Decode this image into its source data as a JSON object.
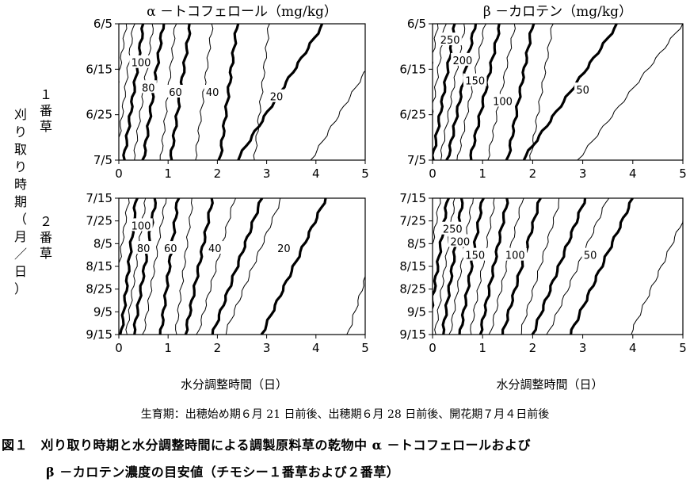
{
  "ylabel": "刈り取り時期（月／日）",
  "first_cut_label": "１番草",
  "second_cut_label": "２番草",
  "note": "生育期：出穂始め期６月 21 日前後、出穂期６月 28 日前後、開花期７月４日前後",
  "caption_line1": "図１　刈り取り時期と水分調整時間による調製原料草の乾物中 α －トコフェロールおよび",
  "caption_line2": "β －カロテン濃度の目安値（チモシー１番草および２番草）",
  "chart_data": [
    {
      "type": "contour",
      "panel": "top-left",
      "title": "α －トコフェロール（mg/kg）",
      "xlabel": "",
      "xlim": [
        0,
        5
      ],
      "x_ticks": [
        "0",
        "1",
        "2",
        "3",
        "4",
        "5"
      ],
      "y_ticks": [
        "6/5",
        "6/15",
        "6/25",
        "7/5"
      ],
      "contour_labels": [
        {
          "text": "100",
          "x": 0.45,
          "y": 8.5
        },
        {
          "text": "80",
          "x": 0.6,
          "y": 14
        },
        {
          "text": "60",
          "x": 1.15,
          "y": 15
        },
        {
          "text": "40",
          "x": 1.9,
          "y": 15
        },
        {
          "text": "20",
          "x": 3.2,
          "y": 16
        }
      ],
      "contours": [
        {
          "level": "",
          "bold": false,
          "x_top": 0.15,
          "x_bottom": -0.25
        },
        {
          "level": "",
          "bold": false,
          "x_top": 0.3,
          "x_bottom": -0.05
        },
        {
          "level": "",
          "bold": true,
          "x_top": 0.5,
          "x_bottom": 0.1
        },
        {
          "level": "",
          "bold": false,
          "x_top": 0.7,
          "x_bottom": 0.3
        },
        {
          "level": "",
          "bold": true,
          "x_top": 0.9,
          "x_bottom": 0.5
        },
        {
          "level": "",
          "bold": false,
          "x_top": 1.15,
          "x_bottom": 0.85
        },
        {
          "level": "",
          "bold": true,
          "x_top": 1.45,
          "x_bottom": 1.05
        },
        {
          "level": "",
          "bold": false,
          "x_top": 1.9,
          "x_bottom": 1.55
        },
        {
          "level": "",
          "bold": true,
          "x_top": 2.4,
          "x_bottom": 2.05
        },
        {
          "level": "",
          "bold": false,
          "x_top": 3.05,
          "x_bottom": 2.75
        },
        {
          "level": "",
          "bold": true,
          "x_top": 4.15,
          "x_bottom": 2.4
        },
        {
          "level": "",
          "bold": false,
          "x_top": 5.6,
          "x_bottom": 3.9
        }
      ]
    },
    {
      "type": "contour",
      "panel": "top-right",
      "title": "β －カロテン（mg/kg）",
      "xlabel": "",
      "xlim": [
        0,
        5
      ],
      "x_ticks": [
        "0",
        "1",
        "2",
        "3",
        "4",
        "5"
      ],
      "y_ticks": [
        "6/5",
        "6/15",
        "6/25",
        "7/5"
      ],
      "contour_labels": [
        {
          "text": "250",
          "x": 0.35,
          "y": 3.5
        },
        {
          "text": "200",
          "x": 0.6,
          "y": 8
        },
        {
          "text": "150",
          "x": 0.85,
          "y": 12.5
        },
        {
          "text": "100",
          "x": 1.4,
          "y": 17
        },
        {
          "text": "50",
          "x": 3.0,
          "y": 14.5
        }
      ],
      "contours": [
        {
          "level": "",
          "bold": false,
          "x_top": 0.1,
          "x_bottom": -0.3
        },
        {
          "level": "",
          "bold": false,
          "x_top": 0.25,
          "x_bottom": -0.15
        },
        {
          "level": "",
          "bold": true,
          "x_top": 0.45,
          "x_bottom": 0.0
        },
        {
          "level": "",
          "bold": false,
          "x_top": 0.65,
          "x_bottom": 0.15
        },
        {
          "level": "",
          "bold": true,
          "x_top": 0.85,
          "x_bottom": 0.3
        },
        {
          "level": "",
          "bold": false,
          "x_top": 1.05,
          "x_bottom": 0.5
        },
        {
          "level": "",
          "bold": true,
          "x_top": 1.35,
          "x_bottom": 0.75
        },
        {
          "level": "",
          "bold": false,
          "x_top": 1.65,
          "x_bottom": 1.1
        },
        {
          "level": "",
          "bold": true,
          "x_top": 2.0,
          "x_bottom": 1.5
        },
        {
          "level": "",
          "bold": false,
          "x_top": 2.4,
          "x_bottom": 1.95
        },
        {
          "level": "",
          "bold": true,
          "x_top": 3.7,
          "x_bottom": 1.8
        },
        {
          "level": "",
          "bold": false,
          "x_top": 5.0,
          "x_bottom": 2.9
        }
      ]
    },
    {
      "type": "contour",
      "panel": "bottom-left",
      "title": "",
      "xlabel": "水分調整時間（日）",
      "xlim": [
        0,
        5
      ],
      "x_ticks": [
        "0",
        "1",
        "2",
        "3",
        "4",
        "5"
      ],
      "y_ticks": [
        "7/15",
        "7/25",
        "8/5",
        "8/15",
        "8/25",
        "9/5",
        "9/15"
      ],
      "contour_labels": [
        {
          "text": "100",
          "x": 0.45,
          "y": 12
        },
        {
          "text": "80",
          "x": 0.5,
          "y": 22
        },
        {
          "text": "60",
          "x": 1.05,
          "y": 22
        },
        {
          "text": "40",
          "x": 1.95,
          "y": 22
        },
        {
          "text": "20",
          "x": 3.35,
          "y": 22
        }
      ],
      "contours": [
        {
          "level": "",
          "bold": false,
          "x_top": 0.2,
          "x_bottom": -0.2
        },
        {
          "level": "",
          "bold": true,
          "x_top": 0.35,
          "x_bottom": 0.05
        },
        {
          "level": "",
          "bold": false,
          "x_top": 0.55,
          "x_bottom": 0.15
        },
        {
          "level": "",
          "bold": true,
          "x_top": 0.75,
          "x_bottom": 0.3
        },
        {
          "level": "",
          "bold": false,
          "x_top": 0.95,
          "x_bottom": 0.5
        },
        {
          "level": "",
          "bold": true,
          "x_top": 1.2,
          "x_bottom": 0.85
        },
        {
          "level": "",
          "bold": false,
          "x_top": 1.5,
          "x_bottom": 1.15
        },
        {
          "level": "",
          "bold": true,
          "x_top": 1.9,
          "x_bottom": 1.35
        },
        {
          "level": "",
          "bold": false,
          "x_top": 2.35,
          "x_bottom": 1.6
        },
        {
          "level": "",
          "bold": true,
          "x_top": 2.9,
          "x_bottom": 1.9
        },
        {
          "level": "",
          "bold": false,
          "x_top": 3.3,
          "x_bottom": 2.15
        },
        {
          "level": "",
          "bold": true,
          "x_top": 4.2,
          "x_bottom": 2.9
        },
        {
          "level": "",
          "bold": false,
          "x_top": 5.5,
          "x_bottom": 4.65
        }
      ]
    },
    {
      "type": "contour",
      "panel": "bottom-right",
      "title": "",
      "xlabel": "水分調整時間（日）",
      "xlim": [
        0,
        5
      ],
      "x_ticks": [
        "0",
        "1",
        "2",
        "3",
        "4",
        "5"
      ],
      "y_ticks": [
        "7/15",
        "7/25",
        "8/5",
        "8/15",
        "8/25",
        "9/5",
        "9/15"
      ],
      "contour_labels": [
        {
          "text": "250",
          "x": 0.4,
          "y": 13.5
        },
        {
          "text": "200",
          "x": 0.55,
          "y": 19
        },
        {
          "text": "150",
          "x": 0.85,
          "y": 25
        },
        {
          "text": "100",
          "x": 1.65,
          "y": 25
        },
        {
          "text": "50",
          "x": 3.15,
          "y": 25
        }
      ],
      "contours": [
        {
          "level": "",
          "bold": false,
          "x_top": 0.15,
          "x_bottom": -0.3
        },
        {
          "level": "",
          "bold": true,
          "x_top": 0.3,
          "x_bottom": -0.1
        },
        {
          "level": "",
          "bold": false,
          "x_top": 0.45,
          "x_bottom": 0.05
        },
        {
          "level": "",
          "bold": true,
          "x_top": 0.6,
          "x_bottom": 0.2
        },
        {
          "level": "",
          "bold": false,
          "x_top": 0.8,
          "x_bottom": 0.35
        },
        {
          "level": "",
          "bold": true,
          "x_top": 1.0,
          "x_bottom": 0.55
        },
        {
          "level": "",
          "bold": false,
          "x_top": 1.25,
          "x_bottom": 0.75
        },
        {
          "level": "",
          "bold": true,
          "x_top": 1.5,
          "x_bottom": 0.95
        },
        {
          "level": "",
          "bold": false,
          "x_top": 1.8,
          "x_bottom": 1.15
        },
        {
          "level": "",
          "bold": true,
          "x_top": 2.15,
          "x_bottom": 1.4
        },
        {
          "level": "",
          "bold": false,
          "x_top": 2.55,
          "x_bottom": 1.75
        },
        {
          "level": "",
          "bold": true,
          "x_top": 3.05,
          "x_bottom": 2.0
        },
        {
          "level": "",
          "bold": false,
          "x_top": 3.5,
          "x_bottom": 2.3
        },
        {
          "level": "",
          "bold": true,
          "x_top": 4.0,
          "x_bottom": 2.75
        },
        {
          "level": "",
          "bold": false,
          "x_top": 5.2,
          "x_bottom": 3.95
        }
      ]
    }
  ]
}
